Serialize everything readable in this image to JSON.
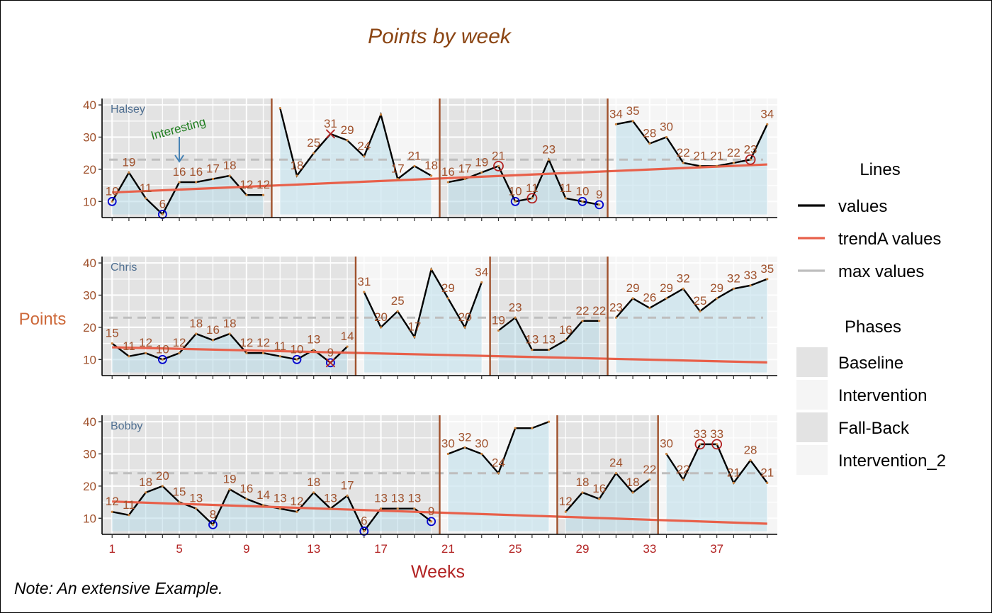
{
  "title": "Points by week",
  "ylabel": "Points",
  "xlabel": "Weeks",
  "note": "Note: An extensive Example.",
  "annotation": "Interesting",
  "colors": {
    "title": "#8B4513",
    "axis_text": "#A0522D",
    "axis_title": "#B22222",
    "ylabel": "#CD6839",
    "case_label": "#4F6F91",
    "values_line": "#000000",
    "trend": "#E8604A",
    "max_line": "#BEBEBE",
    "phase_line": "#A0522D",
    "area_fill": "#ADD8E6",
    "baseline_bg": "#E3E3E3",
    "intervention_bg": "#F5F5F5",
    "point_label": "#A0522D",
    "min_marker": "#0000CD",
    "max_marker": "#B22222",
    "annotation": "#1E7D1E",
    "arrow": "#4682B4"
  },
  "legend": {
    "lines_title": "Lines",
    "lines": [
      {
        "label": "values",
        "color": "#000000"
      },
      {
        "label": "trendA values",
        "color": "#E8604A"
      },
      {
        "label": "max values",
        "color": "#BEBEBE"
      }
    ],
    "phases_title": "Phases",
    "phases": [
      {
        "label": "Baseline",
        "color": "#E3E3E3"
      },
      {
        "label": "Intervention",
        "color": "#F5F5F5"
      },
      {
        "label": "Fall-Back",
        "color": "#E3E3E3"
      },
      {
        "label": "Intervention_2",
        "color": "#F5F5F5"
      }
    ]
  },
  "chart_data": {
    "type": "line",
    "title": "Points by week",
    "xlabel": "Weeks",
    "ylabel": "Points",
    "xlim": [
      1,
      40
    ],
    "ylim": [
      5,
      42
    ],
    "x_ticks": [
      1,
      5,
      9,
      13,
      17,
      21,
      25,
      29,
      33,
      37
    ],
    "y_ticks": [
      10,
      20,
      30,
      40
    ],
    "grid": true,
    "legend_position": "right",
    "cases": [
      {
        "name": "Halsey",
        "values": [
          10,
          19,
          11,
          6,
          16,
          16,
          17,
          18,
          12,
          12,
          39,
          18,
          25,
          31,
          29,
          24,
          37,
          17,
          21,
          18,
          16,
          17,
          19,
          21,
          10,
          11,
          23,
          11,
          10,
          9,
          34,
          35,
          28,
          30,
          22,
          21,
          21,
          22,
          23,
          34
        ],
        "labeled": [
          1,
          1,
          1,
          1,
          1,
          1,
          1,
          1,
          1,
          1,
          0,
          1,
          1,
          1,
          1,
          1,
          0,
          1,
          1,
          1,
          1,
          1,
          1,
          1,
          1,
          1,
          1,
          1,
          1,
          1,
          1,
          1,
          1,
          1,
          1,
          1,
          1,
          1,
          1,
          1
        ],
        "phases": [
          {
            "name": "Baseline",
            "start": 1,
            "end": 10
          },
          {
            "name": "Intervention",
            "start": 11,
            "end": 20
          },
          {
            "name": "Fall-Back",
            "start": 21,
            "end": 30
          },
          {
            "name": "Intervention_2",
            "start": 31,
            "end": 40
          }
        ],
        "max_line": 23,
        "trend": {
          "x_start": 1,
          "y_start": 12.8,
          "x_end": 40,
          "y_end": 21.5
        },
        "min_markers": [
          1,
          4,
          25,
          29,
          30
        ],
        "max_markers": [
          24,
          26,
          39
        ],
        "x_markers": [
          14
        ],
        "annotation_week": 5
      },
      {
        "name": "Chris",
        "values": [
          15,
          11,
          12,
          10,
          12,
          18,
          16,
          18,
          12,
          12,
          11,
          10,
          13,
          9,
          14,
          31,
          20,
          25,
          17,
          38,
          29,
          20,
          34,
          19,
          23,
          13,
          13,
          16,
          22,
          22,
          23,
          29,
          26,
          29,
          32,
          25,
          29,
          32,
          33,
          35
        ],
        "labeled": [
          1,
          1,
          1,
          1,
          1,
          1,
          1,
          1,
          1,
          1,
          1,
          1,
          1,
          1,
          1,
          1,
          1,
          1,
          1,
          0,
          1,
          1,
          1,
          1,
          1,
          1,
          1,
          1,
          1,
          1,
          1,
          1,
          1,
          1,
          1,
          1,
          1,
          1,
          1,
          1
        ],
        "phases": [
          {
            "name": "Baseline",
            "start": 1,
            "end": 15
          },
          {
            "name": "Intervention",
            "start": 16,
            "end": 23
          },
          {
            "name": "Fall-Back",
            "start": 24,
            "end": 30
          },
          {
            "name": "Intervention_2",
            "start": 31,
            "end": 40
          }
        ],
        "max_line": 23,
        "trend": {
          "x_start": 1,
          "y_start": 13.8,
          "x_end": 40,
          "y_end": 9.1
        },
        "min_markers": [
          4,
          12,
          14
        ],
        "max_markers": [],
        "x_markers": [
          14
        ]
      },
      {
        "name": "Bobby",
        "values": [
          12,
          11,
          18,
          20,
          15,
          13,
          8,
          19,
          16,
          14,
          13,
          12,
          18,
          13,
          17,
          6,
          13,
          13,
          13,
          9,
          30,
          32,
          30,
          24,
          38,
          38,
          40,
          12,
          18,
          16,
          24,
          18,
          22,
          30,
          22,
          33,
          33,
          21,
          28,
          21
        ],
        "labeled": [
          1,
          1,
          1,
          1,
          1,
          1,
          1,
          1,
          1,
          1,
          1,
          1,
          1,
          1,
          1,
          1,
          1,
          1,
          1,
          1,
          1,
          1,
          1,
          1,
          0,
          0,
          0,
          1,
          1,
          1,
          1,
          1,
          1,
          1,
          1,
          1,
          1,
          1,
          1,
          1
        ],
        "phases": [
          {
            "name": "Baseline",
            "start": 1,
            "end": 20
          },
          {
            "name": "Intervention",
            "start": 21,
            "end": 27
          },
          {
            "name": "Fall-Back",
            "start": 28,
            "end": 33
          },
          {
            "name": "Intervention_2",
            "start": 34,
            "end": 40
          }
        ],
        "max_line": 24,
        "trend": {
          "x_start": 1,
          "y_start": 15.2,
          "x_end": 40,
          "y_end": 8.3
        },
        "min_markers": [
          7,
          16,
          20
        ],
        "max_markers": [
          36,
          37
        ],
        "x_markers": []
      }
    ]
  }
}
